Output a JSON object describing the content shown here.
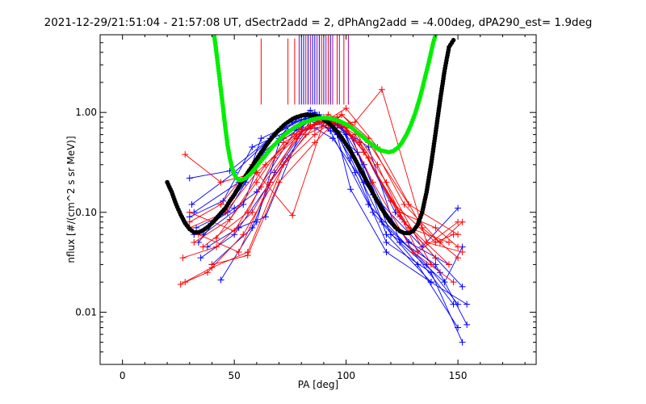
{
  "chart_data": {
    "type": "scatter",
    "title": "2021-12-29/21:51:04 - 21:57:08 UT, dSectr2add = 2, dPhAng2add = -4.00deg, dPA290_est=   1.9deg",
    "xlabel": "PA [deg]",
    "ylabel": "nflux [#/(cm^2 s sr MeV)]",
    "xlim": [
      -10,
      185
    ],
    "ylim": [
      0.003,
      6
    ],
    "yscale": "log",
    "grid": false,
    "x_ticks": [
      {
        "value": 0,
        "label": "0"
      },
      {
        "value": 50,
        "label": "50"
      },
      {
        "value": 100,
        "label": "100"
      },
      {
        "value": 150,
        "label": "150"
      }
    ],
    "y_ticks": [
      {
        "value": 0.01,
        "label": "0.01"
      },
      {
        "value": 0.1,
        "label": "0.10"
      },
      {
        "value": 1,
        "label": "1.00"
      }
    ],
    "colors": {
      "red": "#ff0000",
      "blue": "#0000ff",
      "green": "#00ee00",
      "black": "#000000",
      "purple": "#aa0099"
    },
    "vertical_markers": {
      "y_bottom": 1.2,
      "items": [
        {
          "x": 62,
          "color": "red",
          "top": 5.5
        },
        {
          "x": 74,
          "color": "red",
          "top": 5.5
        },
        {
          "x": 77,
          "color": "red",
          "top": 5.5
        },
        {
          "x": 79,
          "color": "purple",
          "top": 6
        },
        {
          "x": 80,
          "color": "blue",
          "top": 6
        },
        {
          "x": 81,
          "color": "blue",
          "top": 6
        },
        {
          "x": 82,
          "color": "red",
          "top": 6
        },
        {
          "x": 83,
          "color": "blue",
          "top": 6
        },
        {
          "x": 84,
          "color": "purple",
          "top": 6
        },
        {
          "x": 85,
          "color": "blue",
          "top": 6
        },
        {
          "x": 86,
          "color": "blue",
          "top": 6
        },
        {
          "x": 87,
          "color": "purple",
          "top": 6
        },
        {
          "x": 88,
          "color": "blue",
          "top": 6
        },
        {
          "x": 89,
          "color": "red",
          "top": 6
        },
        {
          "x": 90,
          "color": "blue",
          "top": 6
        },
        {
          "x": 91,
          "color": "purple",
          "top": 6
        },
        {
          "x": 92,
          "color": "red",
          "top": 6
        },
        {
          "x": 93,
          "color": "blue",
          "top": 6
        },
        {
          "x": 94,
          "color": "purple",
          "top": 6
        },
        {
          "x": 96,
          "color": "red",
          "top": 6
        },
        {
          "x": 97,
          "color": "purple",
          "top": 6
        },
        {
          "x": 99,
          "color": "red",
          "top": 6
        },
        {
          "x": 101,
          "color": "purple",
          "top": 6
        }
      ]
    },
    "fit_curves": [
      {
        "color": "black",
        "x": [
          20,
          22,
          24,
          26,
          28,
          30,
          32,
          34,
          36,
          38,
          40,
          42,
          44,
          46,
          48,
          50,
          52,
          54,
          56,
          58,
          60,
          62,
          64,
          66,
          68,
          70,
          72,
          74,
          76,
          78,
          80,
          82,
          84,
          86,
          88,
          90,
          92,
          94,
          96,
          98,
          100,
          102,
          104,
          106,
          108,
          110,
          112,
          114,
          116,
          118,
          120,
          122,
          124,
          126,
          128,
          130,
          132,
          134,
          136,
          138,
          140,
          142,
          144,
          146,
          148
        ],
        "y": [
          0.2,
          0.16,
          0.12,
          0.095,
          0.078,
          0.068,
          0.063,
          0.063,
          0.066,
          0.071,
          0.078,
          0.087,
          0.098,
          0.11,
          0.13,
          0.15,
          0.18,
          0.21,
          0.25,
          0.29,
          0.34,
          0.4,
          0.46,
          0.53,
          0.6,
          0.67,
          0.74,
          0.8,
          0.86,
          0.9,
          0.93,
          0.95,
          0.95,
          0.93,
          0.9,
          0.85,
          0.79,
          0.72,
          0.64,
          0.56,
          0.48,
          0.41,
          0.34,
          0.28,
          0.23,
          0.19,
          0.155,
          0.13,
          0.108,
          0.092,
          0.08,
          0.071,
          0.065,
          0.062,
          0.062,
          0.065,
          0.075,
          0.1,
          0.16,
          0.3,
          0.62,
          1.3,
          2.6,
          4.5,
          5.3
        ]
      },
      {
        "color": "green",
        "x": [
          41,
          42,
          43,
          44,
          45,
          46,
          47,
          48,
          49,
          50,
          51,
          52,
          53,
          55,
          57,
          59,
          61,
          63,
          65,
          67,
          69,
          71,
          73,
          75,
          77,
          79,
          81,
          83,
          85,
          87,
          89,
          91,
          93,
          95,
          97,
          99,
          101,
          103,
          105,
          107,
          109,
          111,
          113,
          115,
          117,
          119,
          121,
          123,
          125,
          127,
          129,
          131,
          133,
          135,
          137,
          138,
          139,
          140,
          141
        ],
        "y": [
          6.0,
          4.0,
          2.6,
          1.7,
          1.1,
          0.7,
          0.47,
          0.35,
          0.28,
          0.24,
          0.22,
          0.21,
          0.21,
          0.22,
          0.24,
          0.27,
          0.31,
          0.35,
          0.4,
          0.45,
          0.5,
          0.56,
          0.61,
          0.66,
          0.71,
          0.75,
          0.79,
          0.82,
          0.85,
          0.87,
          0.88,
          0.88,
          0.87,
          0.85,
          0.82,
          0.78,
          0.74,
          0.69,
          0.63,
          0.58,
          0.53,
          0.49,
          0.45,
          0.42,
          0.41,
          0.4,
          0.41,
          0.44,
          0.5,
          0.6,
          0.75,
          1.0,
          1.4,
          2.1,
          3.2,
          4.0,
          5.0,
          6.0,
          7.0
        ]
      }
    ],
    "series": [
      {
        "color": "blue",
        "x": [
          30,
          48,
          66,
          84,
          95,
          104,
          118,
          138,
          152
        ],
        "y": [
          0.22,
          0.26,
          0.55,
          1.05,
          0.7,
          0.25,
          0.05,
          0.025,
          0.005
        ]
      },
      {
        "color": "blue",
        "x": [
          31,
          50,
          68,
          86,
          98,
          108,
          120,
          140,
          154
        ],
        "y": [
          0.12,
          0.25,
          0.6,
          1.0,
          0.72,
          0.3,
          0.06,
          0.03,
          0.0075
        ]
      },
      {
        "color": "blue",
        "x": [
          32,
          52,
          70,
          86,
          94,
          102,
          116,
          136,
          150
        ],
        "y": [
          0.1,
          0.2,
          0.55,
          0.95,
          0.7,
          0.35,
          0.08,
          0.03,
          0.012
        ]
      },
      {
        "color": "blue",
        "x": [
          33,
          47,
          60,
          76,
          85,
          93,
          110,
          130,
          148
        ],
        "y": [
          0.07,
          0.1,
          0.3,
          0.8,
          0.9,
          0.65,
          0.12,
          0.04,
          0.012
        ]
      },
      {
        "color": "blue",
        "x": [
          34,
          55,
          62,
          80,
          90,
          100,
          112,
          132,
          150
        ],
        "y": [
          0.05,
          0.2,
          0.55,
          0.85,
          0.8,
          0.6,
          0.1,
          0.03,
          0.007
        ]
      },
      {
        "color": "blue",
        "x": [
          36,
          54,
          63,
          82,
          92,
          103,
          118,
          138,
          154
        ],
        "y": [
          0.06,
          0.12,
          0.4,
          0.9,
          0.85,
          0.55,
          0.06,
          0.02,
          0.012
        ]
      },
      {
        "color": "blue",
        "x": [
          38,
          52,
          64,
          82,
          92,
          105,
          120,
          142
        ],
        "y": [
          0.045,
          0.07,
          0.09,
          0.85,
          0.7,
          0.4,
          0.08,
          0.025
        ]
      },
      {
        "color": "blue",
        "x": [
          40,
          58,
          68,
          86,
          96,
          110,
          124,
          144,
          152
        ],
        "y": [
          0.03,
          0.07,
          0.25,
          0.95,
          0.75,
          0.45,
          0.05,
          0.02,
          0.045
        ]
      },
      {
        "color": "blue",
        "x": [
          44,
          60,
          70,
          88,
          96,
          102,
          118,
          138
        ],
        "y": [
          0.021,
          0.08,
          0.5,
          0.95,
          0.6,
          0.17,
          0.04,
          0.02
        ]
      },
      {
        "color": "blue",
        "x": [
          35,
          50,
          66,
          84,
          92,
          106,
          122,
          140,
          152
        ],
        "y": [
          0.035,
          0.06,
          0.2,
          0.75,
          0.85,
          0.5,
          0.1,
          0.035,
          0.018
        ]
      },
      {
        "color": "blue",
        "x": [
          30,
          45,
          58,
          74,
          86,
          94,
          108,
          128,
          146
        ],
        "y": [
          0.09,
          0.13,
          0.45,
          0.65,
          0.7,
          0.55,
          0.2,
          0.05,
          0.03
        ]
      },
      {
        "color": "blue",
        "x": [
          32,
          50,
          60,
          78,
          88,
          98,
          112,
          134,
          150
        ],
        "y": [
          0.06,
          0.11,
          0.16,
          0.7,
          0.9,
          0.7,
          0.15,
          0.045,
          0.11
        ]
      },
      {
        "color": "red",
        "x": [
          27,
          42,
          58,
          78,
          90,
          100,
          112,
          130,
          148
        ],
        "y": [
          0.035,
          0.045,
          0.1,
          0.6,
          0.9,
          0.7,
          0.2,
          0.04,
          0.02
        ]
      },
      {
        "color": "red",
        "x": [
          28,
          38,
          54,
          74,
          88,
          96,
          108,
          126,
          146
        ],
        "y": [
          0.02,
          0.025,
          0.06,
          0.35,
          0.85,
          0.9,
          0.4,
          0.08,
          0.03
        ]
      },
      {
        "color": "red",
        "x": [
          26,
          40,
          56,
          72,
          86,
          98,
          110,
          128,
          150
        ],
        "y": [
          0.019,
          0.028,
          0.04,
          0.3,
          0.6,
          0.95,
          0.5,
          0.12,
          0.06
        ]
      },
      {
        "color": "red",
        "x": [
          28,
          44,
          60,
          76,
          90,
          100,
          114,
          134,
          150
        ],
        "y": [
          0.38,
          0.2,
          0.25,
          0.093,
          0.8,
          1.1,
          0.45,
          0.07,
          0.035
        ]
      },
      {
        "color": "red",
        "x": [
          30,
          46,
          60,
          80,
          92,
          104,
          116,
          136,
          152
        ],
        "y": [
          0.07,
          0.1,
          0.25,
          0.65,
          0.75,
          0.8,
          1.7,
          0.05,
          0.04
        ]
      },
      {
        "color": "red",
        "x": [
          32,
          48,
          64,
          80,
          94,
          104,
          118,
          138
        ],
        "y": [
          0.05,
          0.085,
          0.3,
          0.7,
          0.85,
          0.6,
          0.2,
          0.03
        ]
      },
      {
        "color": "red",
        "x": [
          30,
          50,
          62,
          78,
          92,
          102,
          114,
          132,
          150
        ],
        "y": [
          0.1,
          0.065,
          0.18,
          0.55,
          0.95,
          0.75,
          0.3,
          0.04,
          0.08
        ]
      },
      {
        "color": "red",
        "x": [
          34,
          52,
          66,
          82,
          94,
          106,
          120,
          140,
          148
        ],
        "y": [
          0.06,
          0.04,
          0.2,
          0.6,
          0.8,
          0.5,
          0.13,
          0.05,
          0.06
        ]
      },
      {
        "color": "red",
        "x": [
          36,
          56,
          68,
          84,
          96,
          108,
          124,
          140,
          150
        ],
        "y": [
          0.045,
          0.1,
          0.35,
          0.75,
          0.9,
          0.4,
          0.1,
          0.07,
          0.045
        ]
      },
      {
        "color": "red",
        "x": [
          40,
          56,
          70,
          86,
          98,
          110,
          126,
          142,
          152
        ],
        "y": [
          0.03,
          0.037,
          0.2,
          0.5,
          0.95,
          0.55,
          0.12,
          0.05,
          0.08
        ]
      },
      {
        "color": "red",
        "x": [
          42,
          60,
          72,
          88,
          100,
          110,
          124,
          140
        ],
        "y": [
          0.055,
          0.2,
          0.5,
          0.8,
          0.7,
          0.35,
          0.09,
          0.035
        ]
      },
      {
        "color": "red",
        "x": [
          30,
          44,
          58,
          72,
          86,
          96,
          108,
          128,
          146
        ],
        "y": [
          0.08,
          0.12,
          0.3,
          0.55,
          0.75,
          0.85,
          0.4,
          0.07,
          0.05
        ]
      }
    ]
  }
}
